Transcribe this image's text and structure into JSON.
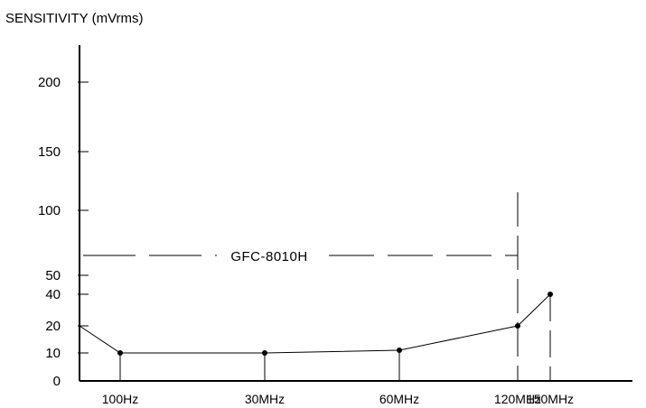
{
  "chart_data": {
    "type": "line",
    "ylabel": "SENSITIVITY (mVrms)",
    "xlabel": "",
    "y_ticks": [
      "0",
      "10",
      "20",
      "40",
      "50",
      "100",
      "150",
      "200"
    ],
    "x_ticks": [
      "100Hz",
      "30MHz",
      "60MHz",
      "120MHz",
      "150MHz"
    ],
    "series": [
      {
        "points": [
          {
            "x": "",
            "y": 20
          },
          {
            "x": "100Hz",
            "y": 10
          },
          {
            "x": "30MHz",
            "y": 10
          },
          {
            "x": "60MHz",
            "y": 11
          },
          {
            "x": "120MHz",
            "y": 20
          },
          {
            "x": "150MHz",
            "y": 40
          }
        ]
      }
    ],
    "annotation": {
      "label": "GFC-8010H",
      "level": 65,
      "limit": "120MHz"
    },
    "grid": false,
    "legend": "none"
  },
  "colors": {
    "line": "#000000",
    "background": "#ffffff"
  }
}
